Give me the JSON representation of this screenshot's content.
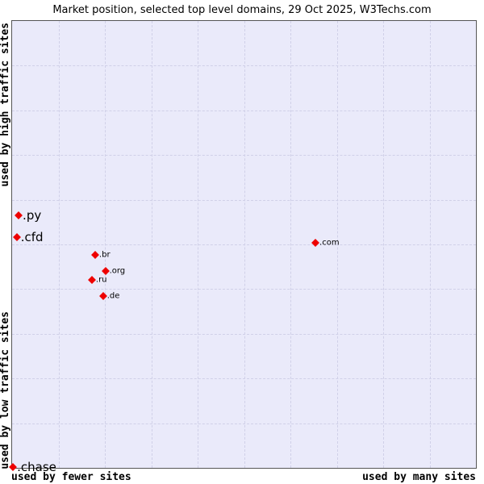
{
  "title": "Market position, selected top level domains, 29 Oct 2025, W3Techs.com",
  "axis_labels": {
    "left_top": "used by high traffic sites",
    "left_bottom": "used by low traffic sites",
    "bottom_left": "used by fewer sites",
    "bottom_right": "used by many sites"
  },
  "colors": {
    "marker": "#ee0000",
    "plot_background": "#eaeafa",
    "grid": "#d0d0e8",
    "border": "#555555"
  },
  "chart_data": {
    "type": "scatter",
    "title": "Market position, selected top level domains, 29 Oct 2025, W3Techs.com",
    "x_axis": {
      "left_label": "used by fewer sites",
      "right_label": "used by many sites"
    },
    "y_axis": {
      "top_label": "used by high traffic sites",
      "bottom_label": "used by low traffic sites"
    },
    "grid": true,
    "grid_divisions": 10,
    "points": [
      {
        "label": ".py",
        "x_pct": 1.4,
        "y_pct": 43.5,
        "label_size": "large"
      },
      {
        "label": ".cfd",
        "x_pct": 1.0,
        "y_pct": 48.4,
        "label_size": "large"
      },
      {
        "label": ".com",
        "x_pct": 65.4,
        "y_pct": 49.6,
        "label_size": "small"
      },
      {
        "label": ".br",
        "x_pct": 17.9,
        "y_pct": 52.3,
        "label_size": "small"
      },
      {
        "label": ".org",
        "x_pct": 20.1,
        "y_pct": 55.9,
        "label_size": "small"
      },
      {
        "label": ".ru",
        "x_pct": 17.2,
        "y_pct": 57.9,
        "label_size": "small"
      },
      {
        "label": ".de",
        "x_pct": 19.6,
        "y_pct": 61.5,
        "label_size": "small"
      },
      {
        "label": ".chase",
        "x_pct": 0.2,
        "y_pct": 99.8,
        "label_size": "large"
      }
    ]
  }
}
